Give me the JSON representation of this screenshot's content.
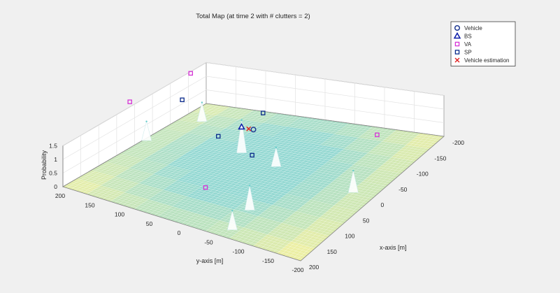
{
  "colors": {
    "figure_bg": "#f0f0f0",
    "vehicle": "#1f3a93",
    "bs": "#0a1aa8",
    "va": "#d633d6",
    "sp": "#0a2a8a",
    "estimation": "#e02020",
    "surface_low": "#93d8d2",
    "surface_high": "#f1f0a2"
  },
  "chart_data": {
    "type": "surface3d",
    "title": "Total Map (at time 2 with # clutters = 2)",
    "xlabel": "x-axis [m]",
    "ylabel": "y-axis [m]",
    "zlabel": "Probability",
    "xlim": [
      -200,
      200
    ],
    "ylim": [
      -200,
      200
    ],
    "zlim": [
      0,
      1.5
    ],
    "x_ticks": [
      "-200",
      "-150",
      "-100",
      "-50",
      "0",
      "50",
      "100",
      "150",
      "200"
    ],
    "y_ticks": [
      "-200",
      "-150",
      "-100",
      "-50",
      "0",
      "50",
      "100",
      "150",
      "200"
    ],
    "z_ticks": [
      "0",
      "0.5",
      "1",
      "1.5"
    ],
    "grid": true,
    "legend_position": "top-right",
    "legend": [
      {
        "label": "Vehicle",
        "marker": "circle"
      },
      {
        "label": "BS",
        "marker": "triangle"
      },
      {
        "label": "VA",
        "marker": "square"
      },
      {
        "label": "SP",
        "marker": "square"
      },
      {
        "label": "Vehicle estimation",
        "marker": "x"
      }
    ],
    "series": [
      {
        "name": "Vehicle",
        "points": [
          {
            "x": 0,
            "y": 0,
            "z": 0
          }
        ]
      },
      {
        "name": "BS",
        "points": [
          {
            "x": 0,
            "y": 20,
            "z": 0
          }
        ]
      },
      {
        "name": "VA",
        "points": [
          {
            "x": -140,
            "y": 190,
            "z": 0
          },
          {
            "x": -55,
            "y": -175,
            "z": 0
          },
          {
            "x": 200,
            "y": -40,
            "z": 0
          },
          {
            "x": 5,
            "y": 205,
            "z": 0
          }
        ]
      },
      {
        "name": "SP",
        "points": [
          {
            "x": -50,
            "y": 150,
            "z": 0
          },
          {
            "x": 70,
            "y": -40,
            "z": 0
          },
          {
            "x": 40,
            "y": 35,
            "z": 0
          },
          {
            "x": -60,
            "y": 20,
            "z": 0
          }
        ]
      },
      {
        "name": "Vehicle estimation",
        "points": [
          {
            "x": 5,
            "y": 5,
            "z": 0
          }
        ]
      }
    ],
    "peaks": [
      {
        "x": -50,
        "y": 50,
        "z": 1.2
      },
      {
        "x": -30,
        "y": -20,
        "z": 0.7
      },
      {
        "x": 110,
        "y": -60,
        "z": 0.9
      },
      {
        "x": -5,
        "y": -165,
        "z": 0.8
      },
      {
        "x": 175,
        "y": -70,
        "z": 0.7
      },
      {
        "x": -130,
        "y": 165,
        "z": 0.7
      },
      {
        "x": -25,
        "y": 195,
        "z": 0.7
      }
    ]
  }
}
